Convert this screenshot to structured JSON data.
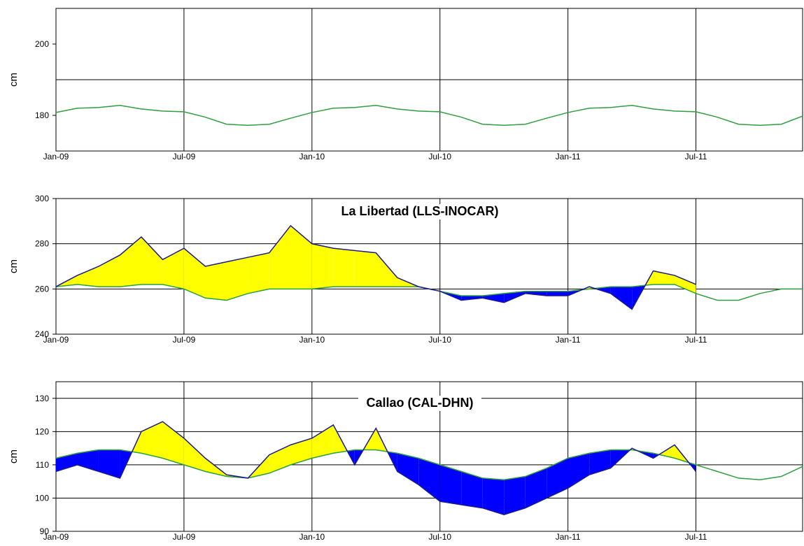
{
  "chart_data": [
    {
      "type": "line",
      "ylabel": "cm",
      "x": [
        "2009-01",
        "2009-02",
        "2009-03",
        "2009-04",
        "2009-05",
        "2009-06",
        "2009-07",
        "2009-08",
        "2009-09",
        "2009-10",
        "2009-11",
        "2009-12",
        "2010-01",
        "2010-02",
        "2010-03",
        "2010-04",
        "2010-05",
        "2010-06",
        "2010-07",
        "2010-08",
        "2010-09",
        "2010-10",
        "2010-11",
        "2010-12",
        "2011-01",
        "2011-02",
        "2011-03",
        "2011-04",
        "2011-05",
        "2011-06",
        "2011-07",
        "2011-08",
        "2011-09",
        "2011-10",
        "2011-11",
        "2011-12"
      ],
      "xlim": [
        "2009-01",
        "2011-12"
      ],
      "xticks": [
        {
          "value": "2009-01",
          "label": "Jan-09"
        },
        {
          "value": "2009-07",
          "label": "Jul-09"
        },
        {
          "value": "2010-01",
          "label": "Jan-10"
        },
        {
          "value": "2010-07",
          "label": "Jul-10"
        },
        {
          "value": "2011-01",
          "label": "Jan-11"
        },
        {
          "value": "2011-07",
          "label": "Jul-11"
        }
      ],
      "ylim": [
        170,
        210
      ],
      "yticks": [
        180,
        200
      ],
      "ygrid": [
        190
      ],
      "series": [
        {
          "color": "#2e9e3e",
          "values": [
            180.8,
            182,
            182.2,
            182.8,
            181.8,
            181.2,
            181,
            179.5,
            177.5,
            177.2,
            177.5,
            179.2,
            180.8,
            182,
            182.2,
            182.8,
            181.8,
            181.2,
            181,
            179.5,
            177.5,
            177.2,
            177.5,
            179.2,
            180.8,
            182,
            182.2,
            182.8,
            181.8,
            181.2,
            181,
            179.5,
            177.5,
            177.2,
            177.5,
            179.8
          ]
        }
      ]
    },
    {
      "type": "line",
      "title": "La Libertad (LLS-INOCAR)",
      "ylabel": "cm",
      "x": [
        "2009-01",
        "2009-02",
        "2009-03",
        "2009-04",
        "2009-05",
        "2009-06",
        "2009-07",
        "2009-08",
        "2009-09",
        "2009-10",
        "2009-11",
        "2009-12",
        "2010-01",
        "2010-02",
        "2010-03",
        "2010-04",
        "2010-05",
        "2010-06",
        "2010-07",
        "2010-08",
        "2010-09",
        "2010-10",
        "2010-11",
        "2010-12",
        "2011-01",
        "2011-02",
        "2011-03",
        "2011-04",
        "2011-05",
        "2011-06",
        "2011-07",
        "2011-08",
        "2011-09",
        "2011-10",
        "2011-11",
        "2011-12"
      ],
      "xlim": [
        "2009-01",
        "2011-12"
      ],
      "xticks": [
        {
          "value": "2009-01",
          "label": "Jan-09"
        },
        {
          "value": "2009-07",
          "label": "Jul-09"
        },
        {
          "value": "2010-01",
          "label": "Jan-10"
        },
        {
          "value": "2010-07",
          "label": "Jul-10"
        },
        {
          "value": "2011-01",
          "label": "Jan-11"
        },
        {
          "value": "2011-07",
          "label": "Jul-11"
        }
      ],
      "ylim": [
        240,
        300
      ],
      "yticks": [
        240,
        260,
        280,
        300
      ],
      "ygrid": [
        260,
        280
      ],
      "fill_above": "#ffff00",
      "fill_below": "#0000ff",
      "series": [
        {
          "color": "#2e9e3e",
          "values": [
            261,
            262,
            261,
            261,
            262,
            262,
            260,
            256,
            255,
            258,
            260,
            260,
            260,
            261,
            261,
            261,
            261,
            261,
            259,
            257,
            257,
            258,
            259,
            259,
            259,
            260,
            261,
            261,
            262,
            262,
            258,
            255,
            255,
            258,
            260,
            260
          ]
        },
        {
          "color": "#1a1a8c",
          "values": [
            261,
            266,
            270,
            275,
            283,
            273,
            278,
            270,
            272,
            274,
            276,
            288,
            280,
            278,
            277,
            276,
            265,
            261,
            259,
            255,
            256,
            254,
            258,
            257,
            257,
            261,
            258,
            251,
            268,
            266,
            262,
            null,
            null,
            null,
            null,
            null
          ]
        }
      ]
    },
    {
      "type": "line",
      "title": "Callao (CAL-DHN)",
      "ylabel": "cm",
      "x": [
        "2009-01",
        "2009-02",
        "2009-03",
        "2009-04",
        "2009-05",
        "2009-06",
        "2009-07",
        "2009-08",
        "2009-09",
        "2009-10",
        "2009-11",
        "2009-12",
        "2010-01",
        "2010-02",
        "2010-03",
        "2010-04",
        "2010-05",
        "2010-06",
        "2010-07",
        "2010-08",
        "2010-09",
        "2010-10",
        "2010-11",
        "2010-12",
        "2011-01",
        "2011-02",
        "2011-03",
        "2011-04",
        "2011-05",
        "2011-06",
        "2011-07",
        "2011-08",
        "2011-09",
        "2011-10",
        "2011-11",
        "2011-12"
      ],
      "xlim": [
        "2009-01",
        "2011-12"
      ],
      "xticks": [
        {
          "value": "2009-01",
          "label": "Jan-09"
        },
        {
          "value": "2009-07",
          "label": "Jul-09"
        },
        {
          "value": "2010-01",
          "label": "Jan-10"
        },
        {
          "value": "2010-07",
          "label": "Jul-10"
        },
        {
          "value": "2011-01",
          "label": "Jan-11"
        },
        {
          "value": "2011-07",
          "label": "Jul-11"
        }
      ],
      "ylim": [
        90,
        135
      ],
      "yticks": [
        90,
        100,
        110,
        120,
        130
      ],
      "ygrid": [
        100,
        110,
        120,
        130
      ],
      "fill_above": "#ffff00",
      "fill_below": "#0000ff",
      "series": [
        {
          "color": "#2e9e3e",
          "values": [
            112,
            113.5,
            114.5,
            114.5,
            113.5,
            112,
            110,
            108,
            106.5,
            106,
            107.5,
            110,
            112,
            113.5,
            114.5,
            114.5,
            113.5,
            112,
            110,
            108,
            106,
            105.5,
            106.5,
            109,
            112,
            113.5,
            114.5,
            114.5,
            113.5,
            112,
            110,
            108,
            106,
            105.5,
            106.5,
            109.5
          ]
        },
        {
          "color": "#1a1a8c",
          "values": [
            108,
            110,
            108,
            106,
            120,
            123,
            118,
            112,
            107,
            106,
            113,
            116,
            118,
            122,
            110,
            121,
            108,
            104,
            99,
            98,
            97,
            95,
            97,
            100,
            103,
            107,
            109,
            115,
            112,
            116,
            108,
            null,
            null,
            null,
            null,
            null
          ]
        }
      ]
    }
  ]
}
